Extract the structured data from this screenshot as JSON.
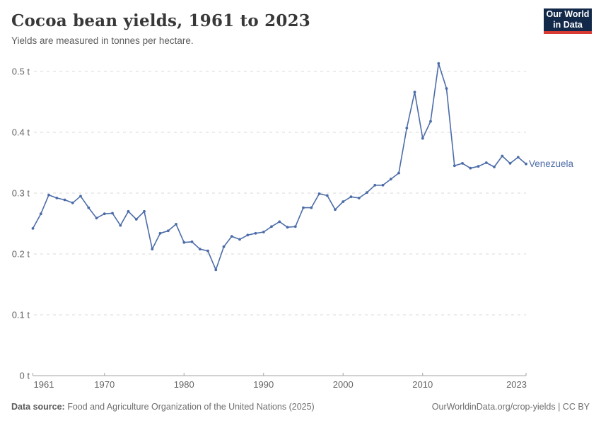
{
  "header": {
    "title": "Cocoa bean yields, 1961 to 2023",
    "subtitle": "Yields are measured in tonnes per hectare."
  },
  "logo": {
    "line1": "Our World",
    "line2": "in Data"
  },
  "footer": {
    "datasource_label": "Data source:",
    "datasource_text": " Food and Agriculture Organization of the United Nations (2025)",
    "right_text": "OurWorldinData.org/crop-yields | CC BY"
  },
  "colors": {
    "line": "#4c6ca8",
    "gridline": "#d8d8d8",
    "axis": "#a3a3a3",
    "axis_label": "#666666",
    "logo_bg": "#12294a",
    "logo_stripe": "#d93a34"
  },
  "chart_data": {
    "type": "line",
    "title": "Cocoa bean yields, 1961 to 2023",
    "subtitle": "Yields are measured in tonnes per hectare.",
    "unit": "tonnes per hectare",
    "series": [
      {
        "name": "Venezuela",
        "x_start_year": 1961,
        "x_end_year": 2023,
        "values": [
          0.242,
          0.266,
          0.297,
          0.292,
          0.289,
          0.284,
          0.295,
          0.276,
          0.259,
          0.266,
          0.267,
          0.247,
          0.27,
          0.257,
          0.27,
          0.208,
          0.234,
          0.238,
          0.249,
          0.219,
          0.22,
          0.208,
          0.205,
          0.174,
          0.212,
          0.229,
          0.224,
          0.231,
          0.234,
          0.236,
          0.245,
          0.253,
          0.244,
          0.245,
          0.276,
          0.276,
          0.299,
          0.296,
          0.273,
          0.286,
          0.294,
          0.292,
          0.301,
          0.313,
          0.313,
          0.323,
          0.333,
          0.407,
          0.466,
          0.39,
          0.418,
          0.513,
          0.472,
          0.345,
          0.349,
          0.341,
          0.344,
          0.35,
          0.343,
          0.361,
          0.349,
          0.359,
          0.348
        ]
      }
    ],
    "ylim": [
      0,
      0.5
    ],
    "y_ticks": [
      {
        "value": 0,
        "label": "0 t"
      },
      {
        "value": 0.1,
        "label": "0.1 t"
      },
      {
        "value": 0.2,
        "label": "0.2 t"
      },
      {
        "value": 0.3,
        "label": "0.3 t"
      },
      {
        "value": 0.4,
        "label": "0.4 t"
      },
      {
        "value": 0.5,
        "label": "0.5 t"
      }
    ],
    "x_ticks": [
      {
        "year": 1961,
        "label": "1961",
        "anchor": "start"
      },
      {
        "year": 1970,
        "label": "1970",
        "anchor": "middle"
      },
      {
        "year": 1980,
        "label": "1980",
        "anchor": "middle"
      },
      {
        "year": 1990,
        "label": "1990",
        "anchor": "middle"
      },
      {
        "year": 2000,
        "label": "2000",
        "anchor": "middle"
      },
      {
        "year": 2010,
        "label": "2010",
        "anchor": "middle"
      },
      {
        "year": 2023,
        "label": "2023",
        "anchor": "end"
      }
    ],
    "grid": true,
    "legend_position": "end-of-line-label"
  }
}
